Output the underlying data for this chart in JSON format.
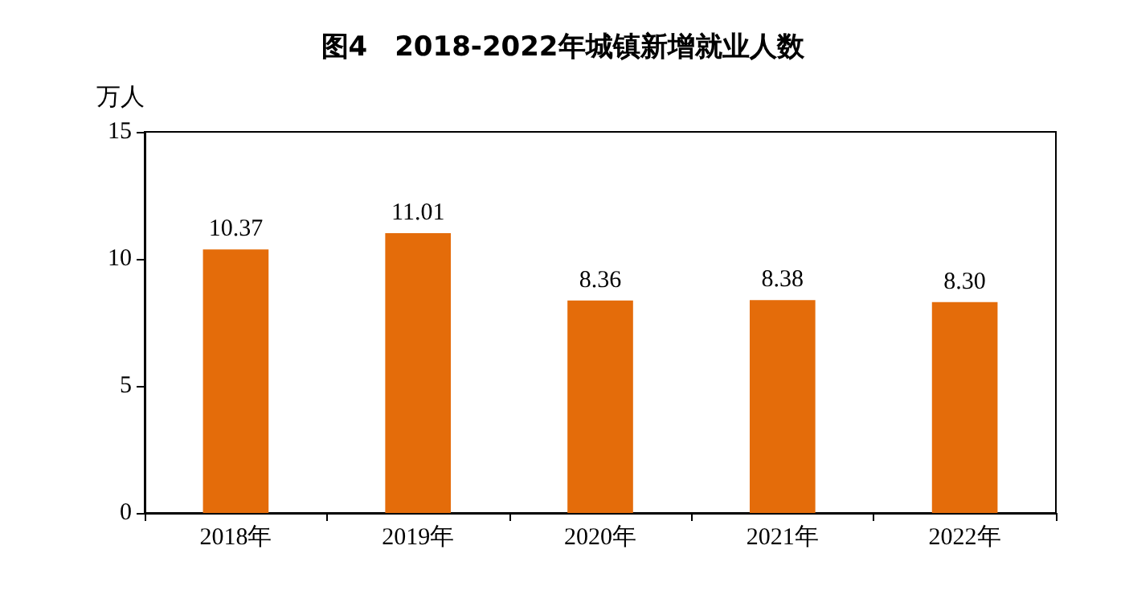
{
  "chart_data": {
    "type": "bar",
    "title": "图4　2018-2022年城镇新增就业人数",
    "ylabel": "万人",
    "categories": [
      "2018年",
      "2019年",
      "2020年",
      "2021年",
      "2022年"
    ],
    "values": [
      10.37,
      11.01,
      8.36,
      8.38,
      8.3
    ],
    "value_labels": [
      "10.37",
      "11.01",
      "8.36",
      "8.38",
      "8.30"
    ],
    "color": "#e46c0a",
    "ylim": [
      0,
      15
    ],
    "yticks": [
      0,
      5,
      10,
      15
    ],
    "grid": false
  }
}
